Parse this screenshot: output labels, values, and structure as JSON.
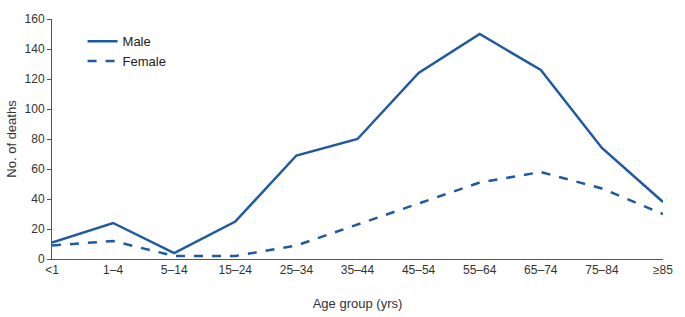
{
  "chart_data": {
    "type": "line",
    "x_label": "Age group (yrs)",
    "y_label": "No. of deaths",
    "categories": [
      "<1",
      "1–4",
      "5–14",
      "15–24",
      "25–34",
      "35–44",
      "45–54",
      "55–64",
      "65–74",
      "75–84",
      "≥85"
    ],
    "series": [
      {
        "name": "Male",
        "color": "#1f5aa0",
        "line_style": "solid",
        "values": [
          11,
          24,
          4,
          25,
          69,
          80,
          124,
          150,
          126,
          74,
          38
        ]
      },
      {
        "name": "Female",
        "color": "#1f5aa0",
        "line_style": "dashed",
        "values": [
          9,
          12,
          2,
          2,
          9,
          23,
          37,
          51,
          58,
          47,
          30
        ]
      }
    ],
    "ylim": [
      0,
      160
    ],
    "yticks": [
      0,
      20,
      40,
      60,
      80,
      100,
      120,
      140,
      160
    ],
    "grid": false,
    "legend": "top left"
  }
}
